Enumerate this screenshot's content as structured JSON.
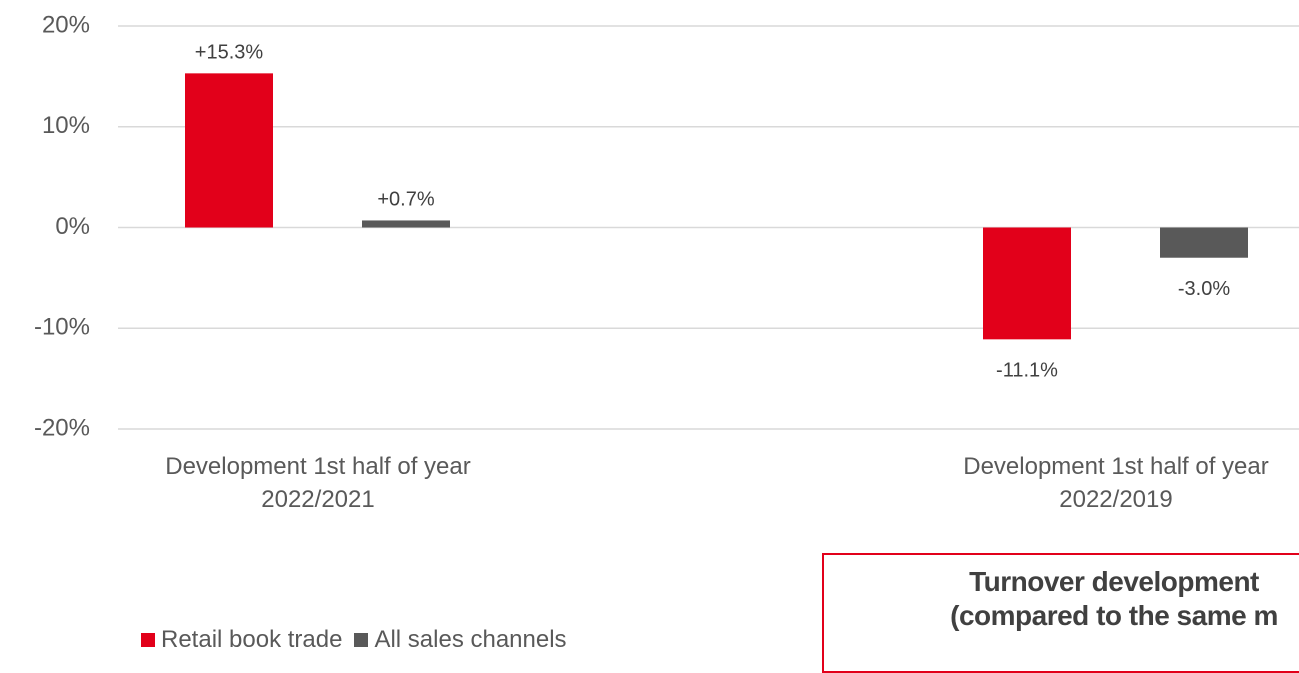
{
  "chart_data": {
    "type": "bar",
    "categories": [
      "Development 1st half of year 2022/2021",
      "Development 1st half of year 2022/2019"
    ],
    "series": [
      {
        "name": "Retail book trade",
        "color": "#e2001a",
        "values": [
          15.3,
          -11.1
        ],
        "value_labels": [
          "+15.3%",
          "-11.1%"
        ]
      },
      {
        "name": "All sales channels",
        "color": "#595959",
        "values": [
          0.7,
          -3.0
        ],
        "value_labels": [
          "+0.7%",
          "-3.0%"
        ]
      }
    ],
    "ylim": [
      -20,
      20
    ],
    "yticks": [
      {
        "value": -20,
        "label": "-20%"
      },
      {
        "value": -10,
        "label": "-10%"
      },
      {
        "value": 0,
        "label": "0%"
      },
      {
        "value": 10,
        "label": "10%"
      },
      {
        "value": 20,
        "label": "20%"
      }
    ],
    "grid": true,
    "annotation": [
      "Turnover development",
      "(compared to the same m"
    ]
  }
}
